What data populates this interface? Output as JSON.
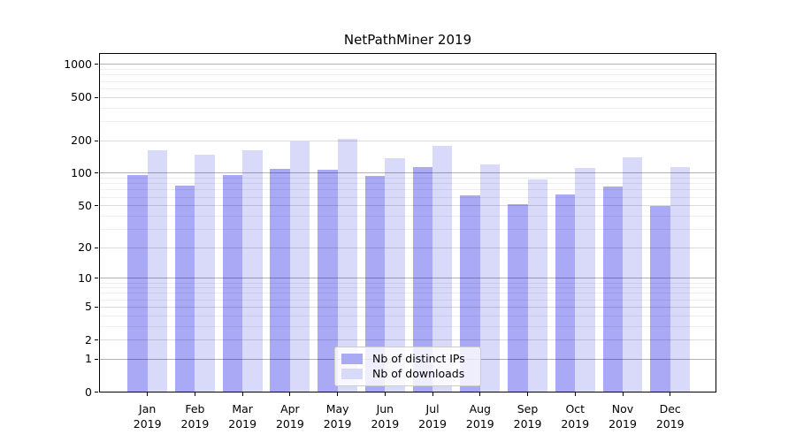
{
  "title": "NetPathMiner 2019",
  "chart_data": {
    "type": "bar",
    "title": "NetPathMiner 2019",
    "categories": [
      "Jan",
      "Feb",
      "Mar",
      "Apr",
      "May",
      "Jun",
      "Jul",
      "Aug",
      "Sep",
      "Oct",
      "Nov",
      "Dec"
    ],
    "category_year": "2019",
    "series": [
      {
        "name": "Nb of distinct IPs",
        "color": "#a9a9f5",
        "values": [
          97,
          77,
          97,
          109,
          107,
          94,
          114,
          62,
          52,
          64,
          75,
          50
        ]
      },
      {
        "name": "Nb of downloads",
        "color": "#d9d9f9",
        "values": [
          163,
          148,
          164,
          196,
          209,
          138,
          179,
          120,
          88,
          112,
          139,
          113
        ]
      }
    ],
    "y_ticks": [
      0,
      1,
      2,
      5,
      10,
      20,
      50,
      100,
      200,
      500,
      1000
    ],
    "y_scale": "log10(value+1)",
    "ylim": [
      0,
      1290
    ],
    "grid": true,
    "legend_position": "lower-center"
  },
  "colors": {
    "bar_distinct_ips": "#a9a9f5",
    "bar_downloads": "#d9d9f9",
    "major_grid": "#b3b3b3",
    "mid_grid": "#dbdbdb",
    "minor_grid": "#ededed",
    "axis": "#000000",
    "background": "#ffffff"
  }
}
